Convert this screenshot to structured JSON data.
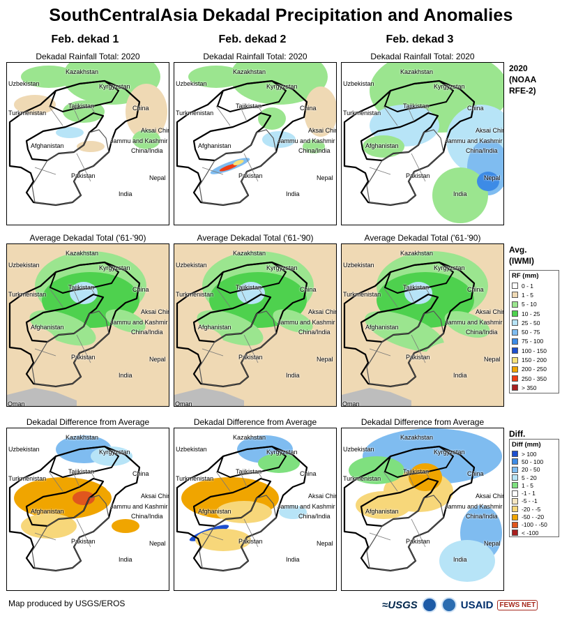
{
  "title": "SouthCentralAsia Dekadal Precipitation and Anomalies",
  "columns": [
    "Feb. dekad 1",
    "Feb. dekad 2",
    "Feb. dekad 3"
  ],
  "row_captions": [
    "Dekadal Rainfall Total: 2020",
    "Average Dekadal Total ('61-'90)",
    "Dekadal Difference from Average"
  ],
  "row_labels": {
    "r1": [
      "2020",
      "(NOAA",
      "RFE-2)"
    ],
    "r2": [
      "Avg.",
      "(IWMI)"
    ],
    "r3": [
      "Diff."
    ]
  },
  "map_labels": [
    "Kazakhstan",
    "Uzbekistan",
    "Kyrgyzstan",
    "Tajikistan",
    "Turkmenistan",
    "China",
    "Aksai Chin",
    "Jammu and Kashmir",
    "China/India",
    "Afghanistan",
    "Pakistan",
    "Nepal",
    "India",
    "Oman"
  ],
  "rf_legend": {
    "title": "RF (mm)",
    "items": [
      {
        "label": "0 - 1",
        "color": "#ffffff"
      },
      {
        "label": "1 - 5",
        "color": "#efd9b4"
      },
      {
        "label": "5 - 10",
        "color": "#9be58f"
      },
      {
        "label": "10 - 25",
        "color": "#4ed14e"
      },
      {
        "label": "25 - 50",
        "color": "#b7e4f7"
      },
      {
        "label": "50 - 75",
        "color": "#7fbcf0"
      },
      {
        "label": "75 - 100",
        "color": "#3d8be6"
      },
      {
        "label": "100 - 150",
        "color": "#1d4fcf"
      },
      {
        "label": "150 - 200",
        "color": "#f7e27a"
      },
      {
        "label": "200 - 250",
        "color": "#f0a500"
      },
      {
        "label": "250 - 350",
        "color": "#ef3b12"
      },
      {
        "label": "> 350",
        "color": "#a81f1f"
      }
    ]
  },
  "diff_legend": {
    "title": "Diff (mm)",
    "items": [
      {
        "label": "> 100",
        "color": "#1d4fcf"
      },
      {
        "label": "50 - 100",
        "color": "#3d8be6"
      },
      {
        "label": "20 - 50",
        "color": "#7fbcf0"
      },
      {
        "label": "5 - 20",
        "color": "#b7e4f7"
      },
      {
        "label": "1 - 5",
        "color": "#7fe07f"
      },
      {
        "label": "-1 - 1",
        "color": "#ffffff"
      },
      {
        "label": "-5 - -1",
        "color": "#f5e6c1"
      },
      {
        "label": "-20 - -5",
        "color": "#f7d77a"
      },
      {
        "label": "-50 - -20",
        "color": "#f0a500"
      },
      {
        "label": "-100 - -50",
        "color": "#e0561e"
      },
      {
        "label": "< -100",
        "color": "#a81f1f"
      }
    ]
  },
  "footer": "Map produced by USGS/EROS",
  "logos": {
    "usgs": "≈USGS",
    "usaid": "USAID",
    "fews": "FEWS NET"
  }
}
